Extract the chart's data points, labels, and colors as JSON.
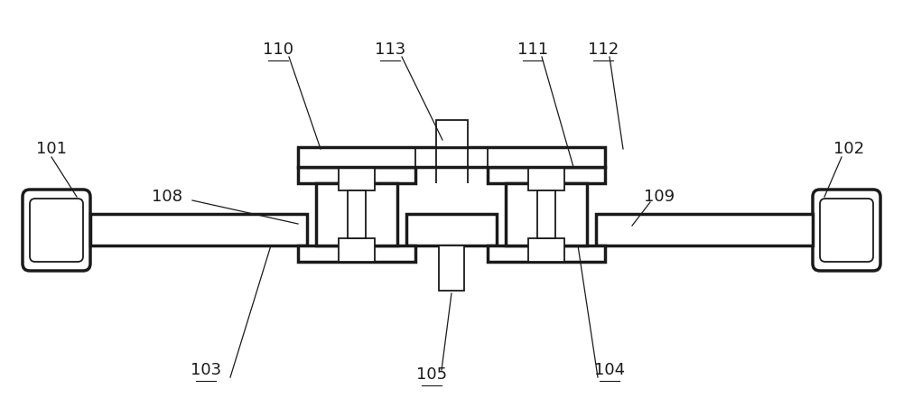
{
  "bg_color": "#ffffff",
  "line_color": "#1a1a1a",
  "lw_thick": 2.5,
  "lw_thin": 1.3,
  "label_fontsize": 13,
  "label_color": "#1a1a1a"
}
